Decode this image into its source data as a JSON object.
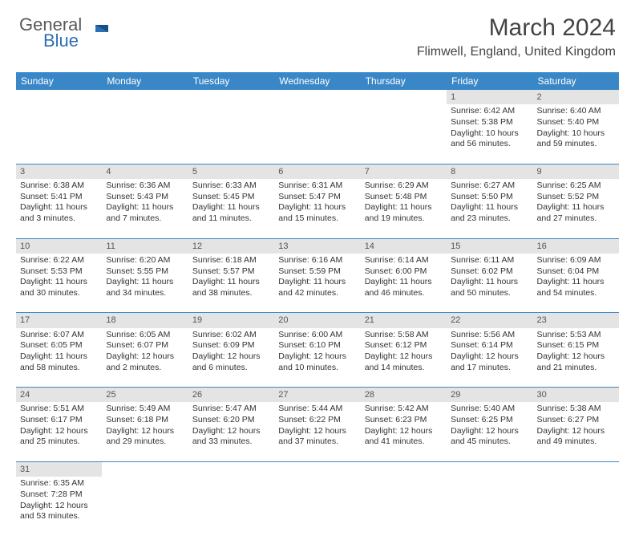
{
  "logo": {
    "text1": "General",
    "text2": "Blue"
  },
  "title": "March 2024",
  "location": "Flimwell, England, United Kingdom",
  "header_bg": "#3a87c7",
  "daynum_bg": "#e4e4e4",
  "columns": [
    "Sunday",
    "Monday",
    "Tuesday",
    "Wednesday",
    "Thursday",
    "Friday",
    "Saturday"
  ],
  "weeks": [
    {
      "nums": [
        "",
        "",
        "",
        "",
        "",
        "1",
        "2"
      ],
      "cells": [
        "",
        "",
        "",
        "",
        "",
        "Sunrise: 6:42 AM\nSunset: 5:38 PM\nDaylight: 10 hours and 56 minutes.",
        "Sunrise: 6:40 AM\nSunset: 5:40 PM\nDaylight: 10 hours and 59 minutes."
      ]
    },
    {
      "nums": [
        "3",
        "4",
        "5",
        "6",
        "7",
        "8",
        "9"
      ],
      "cells": [
        "Sunrise: 6:38 AM\nSunset: 5:41 PM\nDaylight: 11 hours and 3 minutes.",
        "Sunrise: 6:36 AM\nSunset: 5:43 PM\nDaylight: 11 hours and 7 minutes.",
        "Sunrise: 6:33 AM\nSunset: 5:45 PM\nDaylight: 11 hours and 11 minutes.",
        "Sunrise: 6:31 AM\nSunset: 5:47 PM\nDaylight: 11 hours and 15 minutes.",
        "Sunrise: 6:29 AM\nSunset: 5:48 PM\nDaylight: 11 hours and 19 minutes.",
        "Sunrise: 6:27 AM\nSunset: 5:50 PM\nDaylight: 11 hours and 23 minutes.",
        "Sunrise: 6:25 AM\nSunset: 5:52 PM\nDaylight: 11 hours and 27 minutes."
      ]
    },
    {
      "nums": [
        "10",
        "11",
        "12",
        "13",
        "14",
        "15",
        "16"
      ],
      "cells": [
        "Sunrise: 6:22 AM\nSunset: 5:53 PM\nDaylight: 11 hours and 30 minutes.",
        "Sunrise: 6:20 AM\nSunset: 5:55 PM\nDaylight: 11 hours and 34 minutes.",
        "Sunrise: 6:18 AM\nSunset: 5:57 PM\nDaylight: 11 hours and 38 minutes.",
        "Sunrise: 6:16 AM\nSunset: 5:59 PM\nDaylight: 11 hours and 42 minutes.",
        "Sunrise: 6:14 AM\nSunset: 6:00 PM\nDaylight: 11 hours and 46 minutes.",
        "Sunrise: 6:11 AM\nSunset: 6:02 PM\nDaylight: 11 hours and 50 minutes.",
        "Sunrise: 6:09 AM\nSunset: 6:04 PM\nDaylight: 11 hours and 54 minutes."
      ]
    },
    {
      "nums": [
        "17",
        "18",
        "19",
        "20",
        "21",
        "22",
        "23"
      ],
      "cells": [
        "Sunrise: 6:07 AM\nSunset: 6:05 PM\nDaylight: 11 hours and 58 minutes.",
        "Sunrise: 6:05 AM\nSunset: 6:07 PM\nDaylight: 12 hours and 2 minutes.",
        "Sunrise: 6:02 AM\nSunset: 6:09 PM\nDaylight: 12 hours and 6 minutes.",
        "Sunrise: 6:00 AM\nSunset: 6:10 PM\nDaylight: 12 hours and 10 minutes.",
        "Sunrise: 5:58 AM\nSunset: 6:12 PM\nDaylight: 12 hours and 14 minutes.",
        "Sunrise: 5:56 AM\nSunset: 6:14 PM\nDaylight: 12 hours and 17 minutes.",
        "Sunrise: 5:53 AM\nSunset: 6:15 PM\nDaylight: 12 hours and 21 minutes."
      ]
    },
    {
      "nums": [
        "24",
        "25",
        "26",
        "27",
        "28",
        "29",
        "30"
      ],
      "cells": [
        "Sunrise: 5:51 AM\nSunset: 6:17 PM\nDaylight: 12 hours and 25 minutes.",
        "Sunrise: 5:49 AM\nSunset: 6:18 PM\nDaylight: 12 hours and 29 minutes.",
        "Sunrise: 5:47 AM\nSunset: 6:20 PM\nDaylight: 12 hours and 33 minutes.",
        "Sunrise: 5:44 AM\nSunset: 6:22 PM\nDaylight: 12 hours and 37 minutes.",
        "Sunrise: 5:42 AM\nSunset: 6:23 PM\nDaylight: 12 hours and 41 minutes.",
        "Sunrise: 5:40 AM\nSunset: 6:25 PM\nDaylight: 12 hours and 45 minutes.",
        "Sunrise: 5:38 AM\nSunset: 6:27 PM\nDaylight: 12 hours and 49 minutes."
      ]
    },
    {
      "nums": [
        "31",
        "",
        "",
        "",
        "",
        "",
        ""
      ],
      "cells": [
        "Sunrise: 6:35 AM\nSunset: 7:28 PM\nDaylight: 12 hours and 53 minutes.",
        "",
        "",
        "",
        "",
        "",
        ""
      ]
    }
  ]
}
